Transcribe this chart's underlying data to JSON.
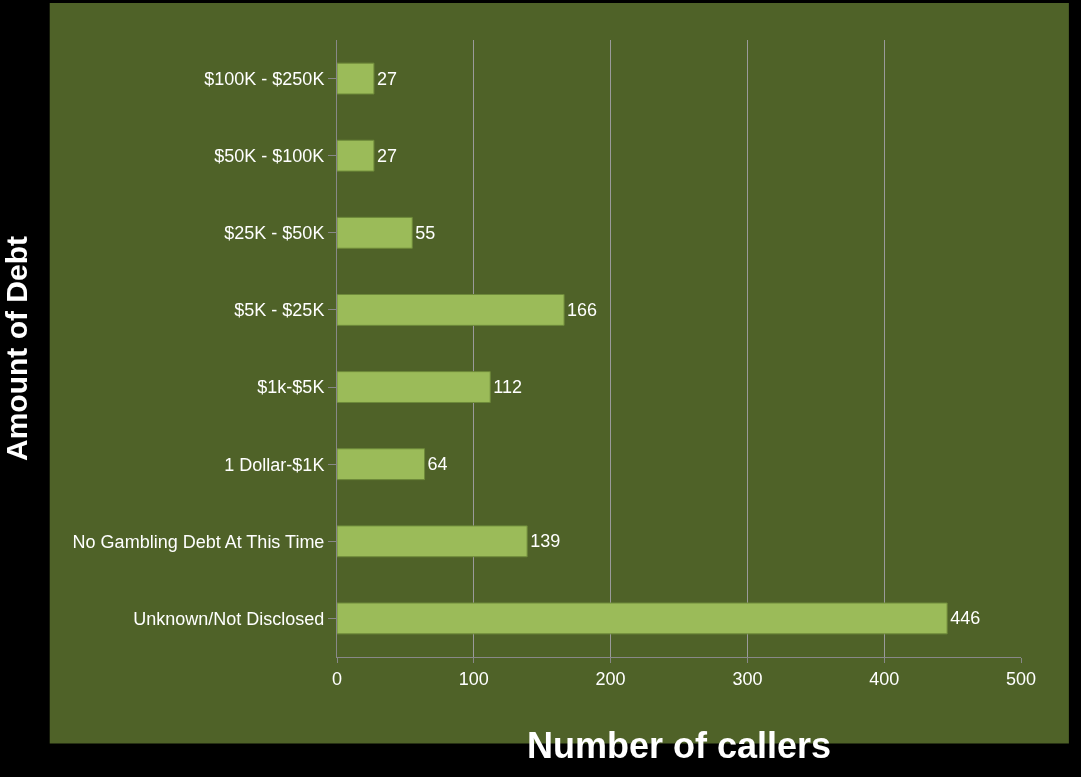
{
  "chart_data": {
    "type": "bar",
    "orientation": "horizontal",
    "xlabel": "Number of callers",
    "ylabel": "Amount of Debt",
    "categories": [
      "$100K - $250K",
      "$50K - $100K",
      "$25K - $50K",
      "$5K - $25K",
      "$1k-$5K",
      "1 Dollar-$1K",
      "No Gambling Debt At This Time",
      "Unknown/Not Disclosed"
    ],
    "values": [
      27,
      27,
      55,
      166,
      112,
      64,
      139,
      446
    ],
    "color": "#9bbb59",
    "xlim": [
      0,
      500
    ],
    "xticks": [
      0,
      100,
      200,
      300,
      400,
      500
    ],
    "grid": "x",
    "data_labels": true,
    "legend": false
  }
}
